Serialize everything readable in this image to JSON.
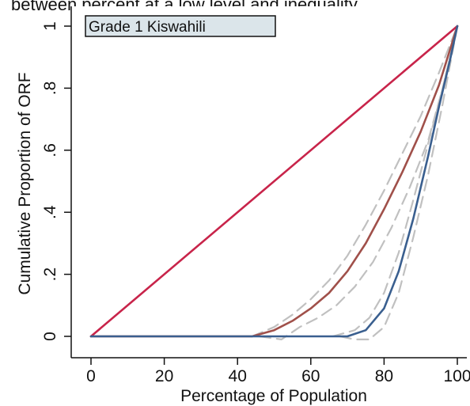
{
  "header_text": "between percent at a low level and inequality",
  "chart_data": {
    "type": "line",
    "title": "Grade 1 Kiswahili",
    "xlabel": "Percentage of Population",
    "ylabel": "Cumulative Proportion of ORF",
    "xlim": [
      0,
      100
    ],
    "ylim": [
      0,
      1
    ],
    "x_ticks": [
      0,
      20,
      40,
      60,
      80,
      100
    ],
    "x_tick_labels": [
      "0",
      "20",
      "40",
      "60",
      "80",
      "100"
    ],
    "y_ticks": [
      0,
      0.2,
      0.4,
      0.6,
      0.8,
      1
    ],
    "y_tick_labels": [
      "0",
      ".2",
      ".4",
      ".6",
      ".8",
      "1"
    ],
    "grid": false,
    "series": [
      {
        "color": "#c8244a",
        "style": "solid",
        "x": [
          0,
          100
        ],
        "y": [
          0,
          1
        ]
      },
      {
        "color": "#a0504a",
        "style": "solid",
        "x": [
          0,
          44,
          50,
          55,
          60,
          65,
          70,
          75,
          80,
          85,
          90,
          95,
          100
        ],
        "y": [
          0,
          0,
          0.02,
          0.05,
          0.09,
          0.14,
          0.21,
          0.3,
          0.41,
          0.53,
          0.66,
          0.81,
          1
        ]
      },
      {
        "color": "#3a5f8f",
        "style": "solid",
        "x": [
          0,
          60,
          70,
          75,
          80,
          84,
          88,
          92,
          95,
          98,
          100
        ],
        "y": [
          0,
          0,
          0,
          0.02,
          0.09,
          0.21,
          0.38,
          0.58,
          0.74,
          0.89,
          1
        ]
      },
      {
        "color": "#c0c0c0",
        "style": "dashed",
        "x": [
          44,
          50,
          55,
          60,
          65,
          70,
          75,
          80,
          85,
          90,
          95,
          100
        ],
        "y": [
          0,
          0.03,
          0.07,
          0.12,
          0.18,
          0.26,
          0.36,
          0.47,
          0.59,
          0.71,
          0.85,
          1
        ]
      },
      {
        "color": "#c0c0c0",
        "style": "dashed",
        "x": [
          46,
          52,
          57,
          62,
          67,
          72,
          77,
          82,
          87,
          92,
          96,
          100
        ],
        "y": [
          0,
          -0.01,
          0.03,
          0.06,
          0.1,
          0.16,
          0.24,
          0.35,
          0.48,
          0.63,
          0.8,
          1
        ]
      },
      {
        "color": "#c0c0c0",
        "style": "dashed",
        "x": [
          66,
          72,
          76,
          80,
          84,
          88,
          92,
          96,
          100
        ],
        "y": [
          0,
          0.02,
          0.06,
          0.14,
          0.27,
          0.44,
          0.62,
          0.8,
          1
        ]
      },
      {
        "color": "#c0c0c0",
        "style": "dashed",
        "x": [
          68,
          72,
          76,
          80,
          84,
          88,
          92,
          96,
          100
        ],
        "y": [
          0,
          -0.01,
          -0.01,
          0.03,
          0.14,
          0.32,
          0.52,
          0.75,
          1
        ]
      }
    ]
  }
}
